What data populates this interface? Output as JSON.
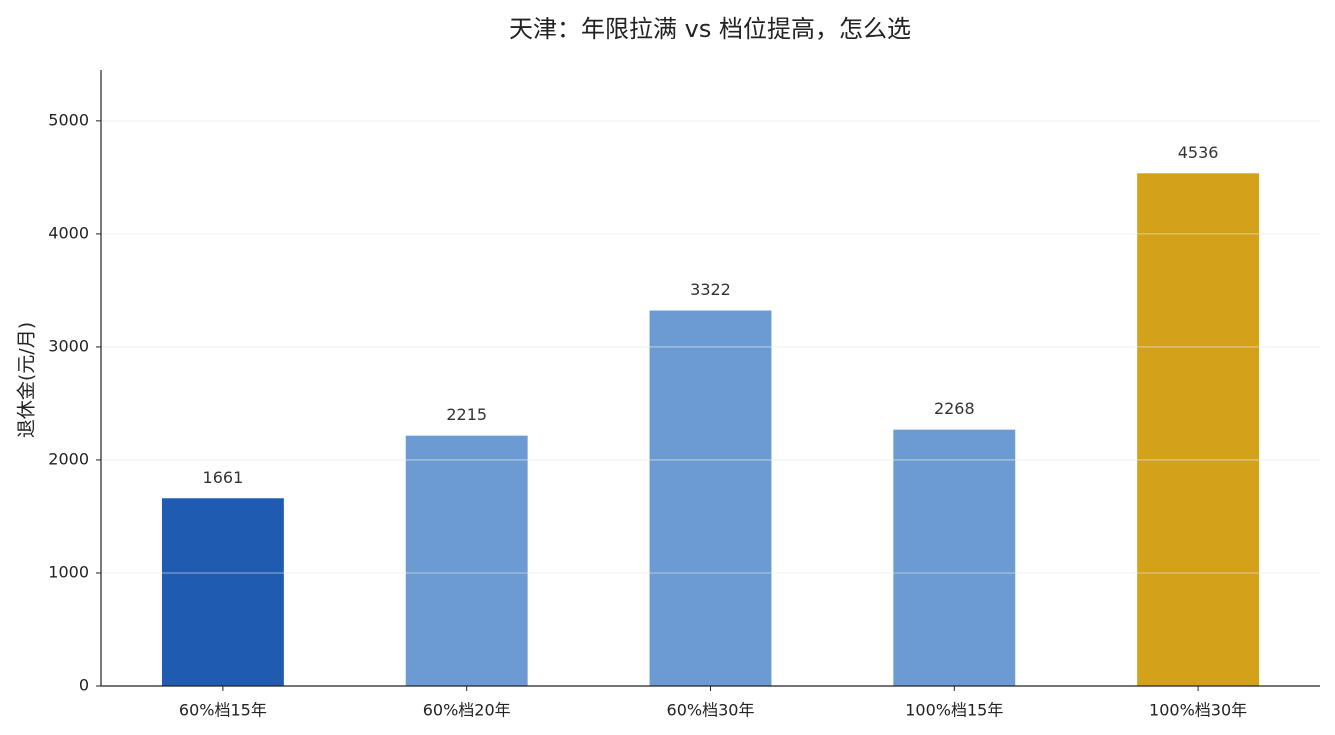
{
  "chart_data": {
    "type": "bar",
    "title": "天津：年限拉满 vs 档位提高，怎么选",
    "y_label": "退休金(元/月)",
    "categories": [
      "60%档15年",
      "60%档20年",
      "60%档30年",
      "100%档15年",
      "100%档30年"
    ],
    "values": [
      1661,
      2215,
      3322,
      2268,
      4536
    ],
    "colors": [
      "#1f5bb0",
      "#6b9bd2",
      "#6b9bd2",
      "#6b9bd2",
      "#d4a11a"
    ],
    "ylim": [
      0,
      5450
    ],
    "yticks": [
      0,
      1000,
      2000,
      3000,
      4000,
      5000
    ],
    "grid": true
  }
}
